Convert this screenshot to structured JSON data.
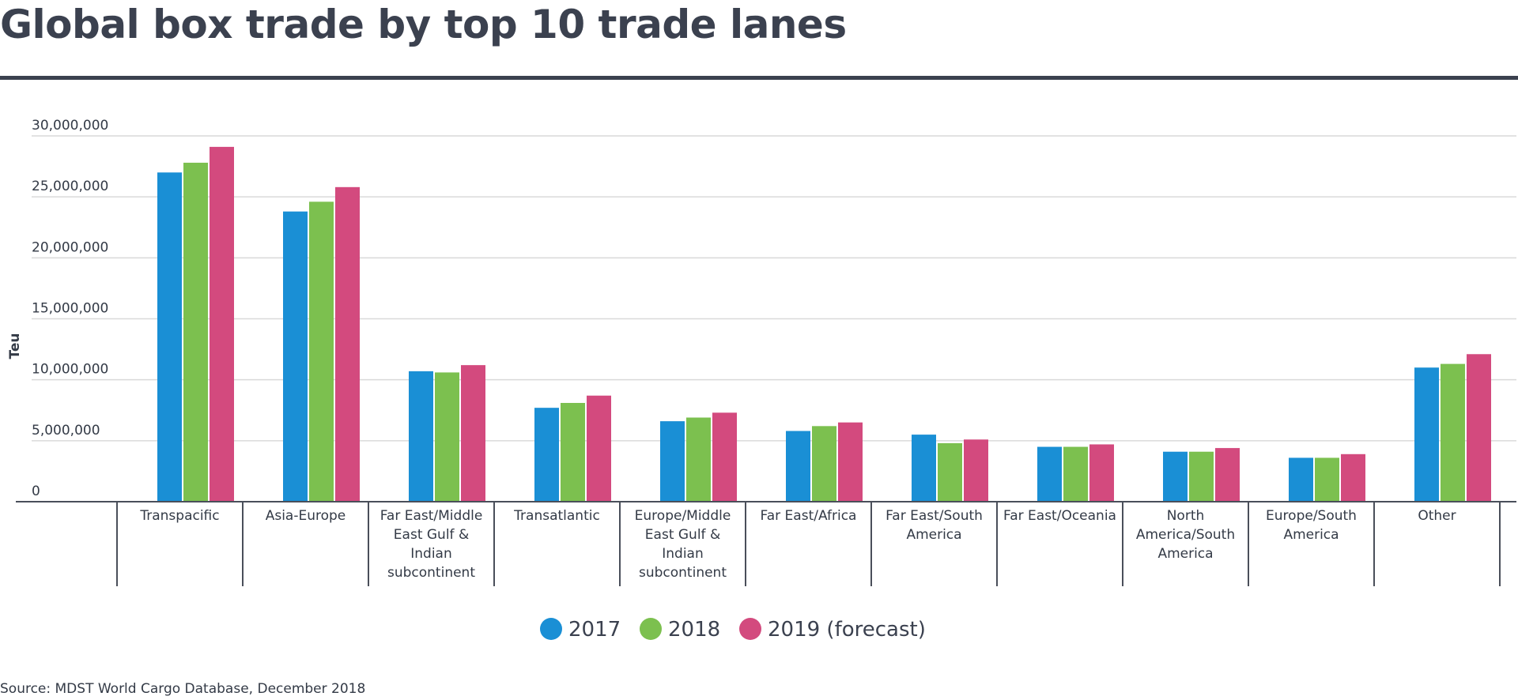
{
  "title": "Global box trade by top 10 trade lanes",
  "source": "Source: MDST World Cargo Database, December 2018",
  "colors": {
    "s2017": "#1a8fd5",
    "s2018": "#7cc04f",
    "s2019": "#d34a7e"
  },
  "chart_data": {
    "type": "bar",
    "ylabel": "Teu",
    "ylim": [
      0,
      30000000
    ],
    "yticks": [
      0,
      5000000,
      10000000,
      15000000,
      20000000,
      25000000,
      30000000
    ],
    "ytick_labels": [
      "0",
      "5,000,000",
      "10,000,000",
      "15,000,000",
      "20,000,000",
      "25,000,000",
      "30,000,000"
    ],
    "grid": true,
    "legend_position": "bottom-center",
    "categories": [
      "Transpacific",
      "Asia-Europe",
      "Far East/Middle East Gulf & Indian subcontinent",
      "Transatlantic",
      "Europe/Middle East Gulf & Indian subcontinent",
      "Far East/Africa",
      "Far East/South America",
      "Far East/Oceania",
      "North America/South America",
      "Europe/South America",
      "Other"
    ],
    "category_lines": [
      [
        "Transpacific"
      ],
      [
        "Asia-Europe"
      ],
      [
        "Far East/Middle",
        "East Gulf &",
        "Indian",
        "subcontinent"
      ],
      [
        "Transatlantic"
      ],
      [
        "Europe/Middle",
        "East Gulf &",
        "Indian",
        "subcontinent"
      ],
      [
        "Far East/Africa"
      ],
      [
        "Far East/South",
        "America"
      ],
      [
        "Far East/Oceania"
      ],
      [
        "North",
        "America/South",
        "America"
      ],
      [
        "Europe/South",
        "America"
      ],
      [
        "Other"
      ]
    ],
    "series": [
      {
        "name": "2017",
        "values": [
          27000000,
          23800000,
          10700000,
          7700000,
          6600000,
          5800000,
          5500000,
          4500000,
          4100000,
          3600000,
          11000000
        ]
      },
      {
        "name": "2018",
        "values": [
          27800000,
          24600000,
          10600000,
          8100000,
          6900000,
          6200000,
          4800000,
          4500000,
          4100000,
          3600000,
          11300000
        ]
      },
      {
        "name": "2019 (forecast)",
        "values": [
          29100000,
          25800000,
          11200000,
          8700000,
          7300000,
          6500000,
          5100000,
          4700000,
          4400000,
          3900000,
          12100000
        ]
      }
    ]
  }
}
